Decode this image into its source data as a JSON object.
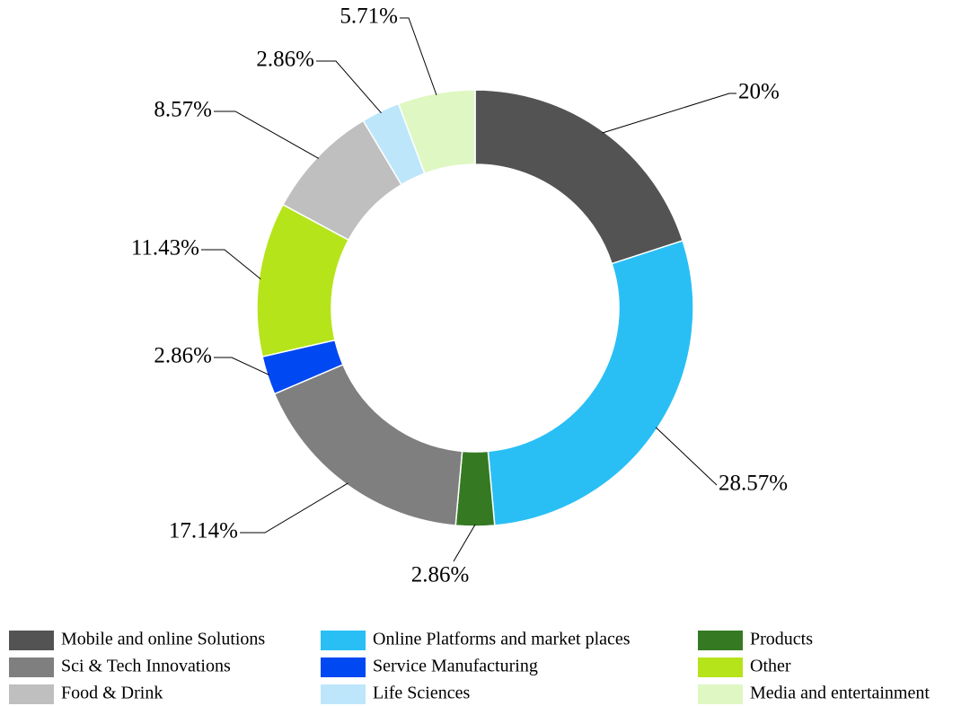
{
  "chart_data": {
    "type": "pie",
    "categories": [
      "Mobile and online Solutions",
      "Online Platforms and market places",
      "Products",
      "Sci & Tech Innovations",
      "Service Manufacturing",
      "Other",
      "Food & Drink",
      "Life Sciences",
      "Media and entertainment"
    ],
    "values": [
      20,
      28.57,
      2.86,
      17.14,
      2.86,
      11.43,
      8.57,
      2.86,
      5.71
    ],
    "value_labels": [
      "20%",
      "28.57%",
      "2.86%",
      "17.14%",
      "2.86%",
      "11.43%",
      "8.57%",
      "2.86%",
      "5.71%"
    ],
    "colors": [
      "#535353",
      "#29bff5",
      "#357a23",
      "#7f7f7f",
      "#0048f2",
      "#b5e41b",
      "#bfbfbf",
      "#bde6fb",
      "#dff7c3"
    ],
    "donut": true,
    "legend": "bottom"
  }
}
